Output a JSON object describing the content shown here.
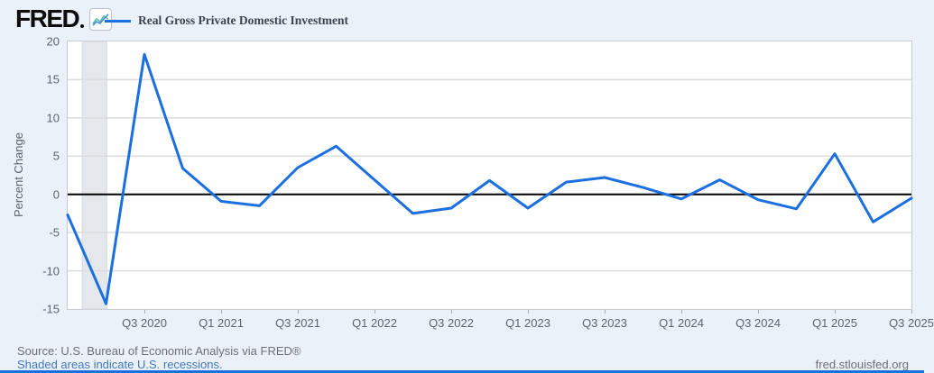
{
  "header": {
    "logo_text": "FRED",
    "legend": {
      "label": "Real Gross Private Domestic Investment"
    }
  },
  "chart_data": {
    "type": "line",
    "title": "Real Gross Private Domestic Investment",
    "series_name": "Real Gross Private Domestic Investment",
    "xlabel": "",
    "ylabel": "Percent Change",
    "ylim": [
      -15,
      20
    ],
    "y_ticks": [
      20,
      15,
      10,
      5,
      0,
      -5,
      -10,
      -15
    ],
    "grid": "horizontal-only",
    "legend_position": "top-left",
    "line_color": "#1b6fe0",
    "zero_line": true,
    "categories": [
      "2020 Q1",
      "2020 Q2",
      "2020 Q3",
      "2020 Q4",
      "2021 Q1",
      "2021 Q2",
      "2021 Q3",
      "2021 Q4",
      "2022 Q1",
      "2022 Q2",
      "2022 Q3",
      "2022 Q4",
      "2023 Q1",
      "2023 Q2",
      "2023 Q3",
      "2023 Q4",
      "2024 Q1",
      "2024 Q2",
      "2024 Q3",
      "2024 Q4",
      "2025 Q1",
      "2025 Q2",
      "2025 Q3"
    ],
    "values": [
      -2.7,
      -14.3,
      18.3,
      3.4,
      -0.9,
      -1.5,
      3.5,
      6.3,
      1.9,
      -2.5,
      -1.8,
      1.8,
      -1.8,
      1.6,
      2.2,
      0.9,
      -0.6,
      1.9,
      -0.7,
      -1.9,
      5.3,
      -3.6,
      -0.5
    ],
    "x_tick_labels": [
      "Q3 2020",
      "Q1 2021",
      "Q3 2021",
      "Q1 2022",
      "Q3 2022",
      "Q1 2023",
      "Q3 2023",
      "Q1 2024",
      "Q3 2024",
      "Q1 2025",
      "Q3 2025"
    ],
    "x_tick_indices": [
      2,
      4,
      6,
      8,
      10,
      12,
      14,
      16,
      18,
      20,
      22
    ],
    "recession_band": {
      "start_index": 0.38,
      "end_index": 1.02
    }
  },
  "footer": {
    "source": "Source: U.S. Bureau of Economic Analysis via FRED®",
    "recession_note": "Shaded areas indicate U.S. recessions.",
    "site": "fred.stlouisfed.org"
  },
  "colors": {
    "page_bg": "#eaf1f9",
    "plot_bg": "#ffffff",
    "plot_border": "#c6cbd1",
    "gridline": "#dcdcdc",
    "zero_line": "#000000",
    "line": "#1b6fe0",
    "recession_band": "#e4e7eb",
    "recession_band_edge": "#d5dade",
    "axis_text": "#5c646d",
    "source_text": "#6c7177",
    "link_text": "#4377bd",
    "bottom_bar": "#1b6fe0",
    "logo_icon_blue": "#4a90d9",
    "logo_icon_teal": "#57bcab"
  }
}
